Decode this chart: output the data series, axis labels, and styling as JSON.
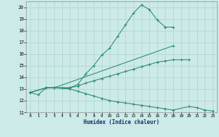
{
  "xlabel": "Humidex (Indice chaleur)",
  "bg_color": "#cceae7",
  "line_color": "#2d8b7a",
  "grid_color": "#aad4cf",
  "xlim": [
    -0.5,
    23.5
  ],
  "ylim": [
    11,
    20.5
  ],
  "xticks": [
    0,
    1,
    2,
    3,
    4,
    5,
    6,
    7,
    8,
    9,
    10,
    11,
    12,
    13,
    14,
    15,
    16,
    17,
    18,
    19,
    20,
    21,
    22,
    23
  ],
  "yticks": [
    11,
    12,
    13,
    14,
    15,
    16,
    17,
    18,
    19,
    20
  ],
  "line1_x": [
    0,
    1,
    2,
    3,
    4,
    5,
    6,
    7,
    8,
    9,
    10,
    11,
    12,
    13,
    14,
    15,
    16,
    17,
    18
  ],
  "line1_y": [
    12.7,
    12.5,
    13.1,
    13.1,
    13.1,
    13.1,
    13.4,
    14.3,
    15.0,
    15.9,
    16.5,
    17.5,
    18.5,
    19.5,
    20.2,
    19.8,
    18.9,
    18.3,
    18.3
  ],
  "line2_x": [
    0,
    2,
    3,
    18
  ],
  "line2_y": [
    12.7,
    13.1,
    13.1,
    16.7
  ],
  "line3_x": [
    0,
    2,
    3,
    5,
    6,
    7,
    8,
    9,
    10,
    11,
    12,
    13,
    14,
    15,
    16,
    17,
    18,
    19,
    20
  ],
  "line3_y": [
    12.7,
    13.1,
    13.1,
    13.1,
    13.25,
    13.5,
    13.7,
    13.9,
    14.1,
    14.3,
    14.5,
    14.7,
    14.9,
    15.1,
    15.3,
    15.4,
    15.5,
    15.5,
    15.5
  ],
  "line4_x": [
    0,
    2,
    3,
    5,
    6,
    7,
    8,
    9,
    10,
    11,
    12,
    13,
    14,
    15,
    16,
    17,
    18,
    20,
    21,
    22,
    23
  ],
  "line4_y": [
    12.7,
    13.1,
    13.1,
    13.0,
    12.8,
    12.6,
    12.4,
    12.2,
    12.0,
    11.9,
    11.8,
    11.7,
    11.6,
    11.5,
    11.4,
    11.3,
    11.2,
    11.5,
    11.4,
    11.2,
    11.1
  ]
}
